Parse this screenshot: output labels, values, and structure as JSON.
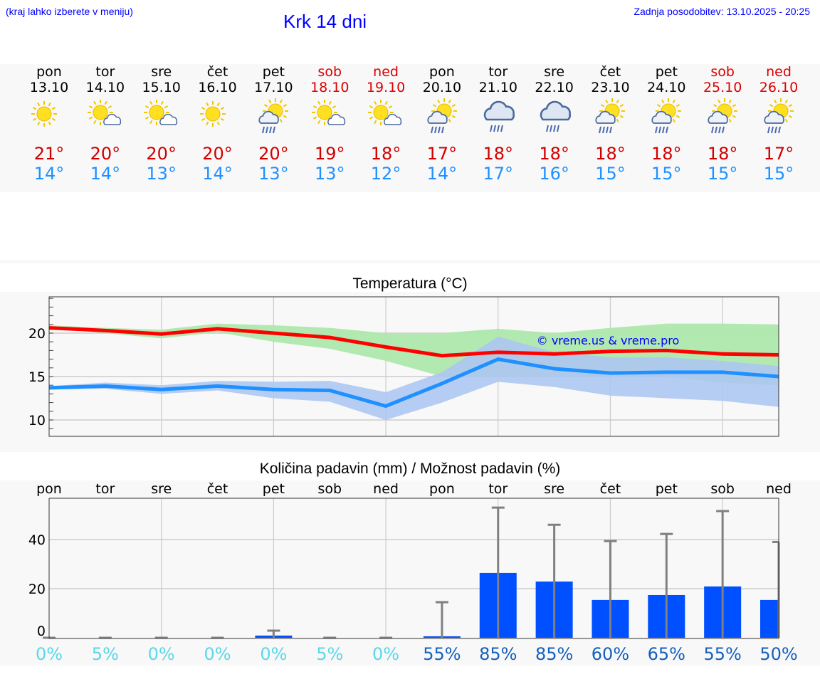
{
  "header": {
    "hint": "(kraj lahko izberete v meniju)",
    "title": "Krk 14 dni",
    "updated": "Zadnja posodobitev: 13.10.2025 - 20:25"
  },
  "days": [
    {
      "name": "pon",
      "date": "13.10",
      "weekend": false,
      "icon": "sun-icon",
      "max": "21°",
      "min": "14°"
    },
    {
      "name": "tor",
      "date": "14.10",
      "weekend": false,
      "icon": "sun-cloud-icon",
      "max": "20°",
      "min": "14°"
    },
    {
      "name": "sre",
      "date": "15.10",
      "weekend": false,
      "icon": "sun-cloud-icon",
      "max": "20°",
      "min": "13°"
    },
    {
      "name": "čet",
      "date": "16.10",
      "weekend": false,
      "icon": "sun-icon",
      "max": "20°",
      "min": "14°"
    },
    {
      "name": "pet",
      "date": "17.10",
      "weekend": false,
      "icon": "sun-cloud-rain-icon",
      "max": "20°",
      "min": "13°"
    },
    {
      "name": "sob",
      "date": "18.10",
      "weekend": true,
      "icon": "sun-cloud-icon",
      "max": "19°",
      "min": "13°"
    },
    {
      "name": "ned",
      "date": "19.10",
      "weekend": true,
      "icon": "sun-cloud-icon",
      "max": "18°",
      "min": "12°"
    },
    {
      "name": "pon",
      "date": "20.10",
      "weekend": false,
      "icon": "sun-cloud-rain-icon",
      "max": "17°",
      "min": "14°"
    },
    {
      "name": "tor",
      "date": "21.10",
      "weekend": false,
      "icon": "cloud-rain-icon",
      "max": "18°",
      "min": "17°"
    },
    {
      "name": "sre",
      "date": "22.10",
      "weekend": false,
      "icon": "cloud-rain-icon",
      "max": "18°",
      "min": "16°"
    },
    {
      "name": "čet",
      "date": "23.10",
      "weekend": false,
      "icon": "sun-cloud-rain-icon",
      "max": "18°",
      "min": "15°"
    },
    {
      "name": "pet",
      "date": "24.10",
      "weekend": false,
      "icon": "sun-cloud-rain-icon",
      "max": "18°",
      "min": "15°"
    },
    {
      "name": "sob",
      "date": "25.10",
      "weekend": true,
      "icon": "sun-cloud-rain-icon",
      "max": "18°",
      "min": "15°"
    },
    {
      "name": "ned",
      "date": "26.10",
      "weekend": true,
      "icon": "sun-cloud-rain-icon",
      "max": "17°",
      "min": "15°"
    }
  ],
  "colors": {
    "max": "#ff0000",
    "min": "#1e90ff",
    "max_band": "#aee8ad",
    "min_band": "#adc6f2",
    "bar": "#0050ff",
    "err": "#808080",
    "prob_low": "#5ad8e8",
    "prob_high": "#1560bd"
  },
  "chart_data": [
    {
      "type": "line",
      "title": "Temperatura (°C)",
      "watermark": "© vreme.us & vreme.pro",
      "ylim": [
        8,
        24
      ],
      "yticks": [
        "10",
        "15",
        "20"
      ],
      "series": [
        {
          "name": "max",
          "values": [
            20.6,
            20.3,
            19.9,
            20.5,
            20.0,
            19.5,
            18.4,
            17.4,
            17.8,
            17.6,
            17.9,
            18.0,
            17.6,
            17.5
          ],
          "low": [
            20.6,
            20.0,
            19.4,
            20.1,
            19.0,
            18.2,
            16.8,
            15.0,
            15.0,
            15.0,
            15.0,
            15.0,
            14.3,
            14.0
          ],
          "high": [
            20.9,
            20.6,
            20.4,
            21.1,
            20.9,
            20.6,
            20.0,
            20.0,
            20.5,
            20.0,
            20.6,
            21.1,
            21.1,
            21.0
          ]
        },
        {
          "name": "min",
          "values": [
            13.7,
            13.9,
            13.5,
            13.9,
            13.5,
            13.4,
            11.6,
            14.2,
            17.0,
            15.9,
            15.4,
            15.5,
            15.5,
            15.0
          ],
          "low": [
            13.5,
            13.6,
            13.0,
            13.4,
            12.5,
            12.1,
            10.0,
            12.0,
            14.4,
            13.8,
            12.8,
            12.5,
            12.2,
            11.5
          ],
          "high": [
            13.9,
            14.3,
            14.0,
            14.5,
            14.4,
            14.5,
            13.2,
            15.5,
            19.6,
            17.8,
            17.2,
            17.2,
            16.8,
            16.2
          ]
        }
      ]
    },
    {
      "type": "bar",
      "title": "Količina padavin (mm) / Možnost padavin (%)",
      "ylim": [
        0,
        57
      ],
      "yticks": [
        "0",
        "20",
        "40"
      ],
      "categories": [
        "pon",
        "tor",
        "sre",
        "čet",
        "pet",
        "sob",
        "ned",
        "pon",
        "tor",
        "sre",
        "čet",
        "pet",
        "sob",
        "ned"
      ],
      "values": [
        0,
        0,
        0,
        0,
        0.9,
        0,
        0,
        0.6,
        26.4,
        22.9,
        15.4,
        17.4,
        20.9,
        15.4
      ],
      "error_high": [
        0,
        0,
        0,
        0,
        2.9,
        0,
        0,
        14.5,
        53,
        46,
        39.4,
        42.3,
        51.6,
        39
      ],
      "probability": [
        "0%",
        "5%",
        "0%",
        "0%",
        "0%",
        "5%",
        "0%",
        "55%",
        "85%",
        "85%",
        "60%",
        "65%",
        "55%",
        "50%"
      ]
    }
  ]
}
